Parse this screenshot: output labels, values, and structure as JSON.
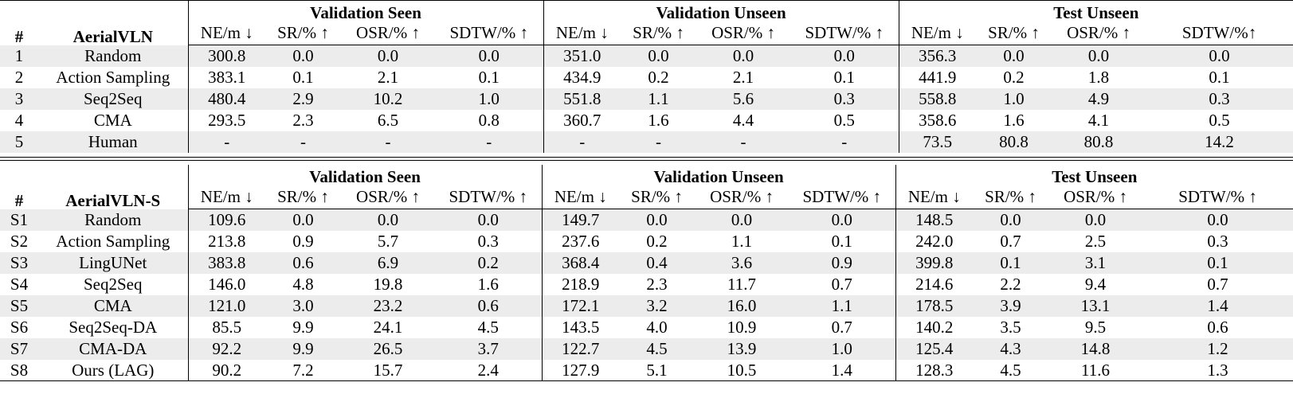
{
  "metric_headers": [
    "NE/m ↓",
    "SR/% ↑",
    "OSR/% ↑",
    "SDTW/% ↑"
  ],
  "test_unseen_sdtw_header_a": "SDTW/%↑",
  "table_a": {
    "hash": "#",
    "name": "AerialVLN",
    "groups": [
      "Validation Seen",
      "Validation Unseen",
      "Test Unseen"
    ],
    "rows": [
      {
        "idx": "1",
        "method": "Random",
        "cells": [
          "300.8",
          "0.0",
          "0.0",
          "0.0",
          "351.0",
          "0.0",
          "0.0",
          "0.0",
          "356.3",
          "0.0",
          "0.0",
          "0.0"
        ]
      },
      {
        "idx": "2",
        "method": "Action Sampling",
        "cells": [
          "383.1",
          "0.1",
          "2.1",
          "0.1",
          "434.9",
          "0.2",
          "2.1",
          "0.1",
          "441.9",
          "0.2",
          "1.8",
          "0.1"
        ]
      },
      {
        "idx": "3",
        "method": "Seq2Seq",
        "cells": [
          "480.4",
          "2.9",
          "10.2",
          "1.0",
          "551.8",
          "1.1",
          "5.6",
          "0.3",
          "558.8",
          "1.0",
          "4.9",
          "0.3"
        ]
      },
      {
        "idx": "4",
        "method": "CMA",
        "cells": [
          "293.5",
          "2.3",
          "6.5",
          "0.8",
          "360.7",
          "1.6",
          "4.4",
          "0.5",
          "358.6",
          "1.6",
          "4.1",
          "0.5"
        ]
      },
      {
        "idx": "5",
        "method": "Human",
        "cells": [
          "-",
          "-",
          "-",
          "-",
          "-",
          "-",
          "-",
          "-",
          "73.5",
          "80.8",
          "80.8",
          "14.2"
        ]
      }
    ]
  },
  "table_b": {
    "hash": "#",
    "name": "AerialVLN-S",
    "groups": [
      "Validation Seen",
      "Validation Unseen",
      "Test Unseen"
    ],
    "rows": [
      {
        "idx": "S1",
        "method": "Random",
        "cells": [
          "109.6",
          "0.0",
          "0.0",
          "0.0",
          "149.7",
          "0.0",
          "0.0",
          "0.0",
          "148.5",
          "0.0",
          "0.0",
          "0.0"
        ]
      },
      {
        "idx": "S2",
        "method": "Action Sampling",
        "cells": [
          "213.8",
          "0.9",
          "5.7",
          "0.3",
          "237.6",
          "0.2",
          "1.1",
          "0.1",
          "242.0",
          "0.7",
          "2.5",
          "0.3"
        ]
      },
      {
        "idx": "S3",
        "method": "LingUNet",
        "cells": [
          "383.8",
          "0.6",
          "6.9",
          "0.2",
          "368.4",
          "0.4",
          "3.6",
          "0.9",
          "399.8",
          "0.1",
          "3.1",
          "0.1"
        ]
      },
      {
        "idx": "S4",
        "method": "Seq2Seq",
        "cells": [
          "146.0",
          "4.8",
          "19.8",
          "1.6",
          "218.9",
          "2.3",
          "11.7",
          "0.7",
          "214.6",
          "2.2",
          "9.4",
          "0.7"
        ]
      },
      {
        "idx": "S5",
        "method": "CMA",
        "cells": [
          "121.0",
          "3.0",
          "23.2",
          "0.6",
          "172.1",
          "3.2",
          "16.0",
          "1.1",
          "178.5",
          "3.9",
          "13.1",
          "1.4"
        ]
      },
      {
        "idx": "S6",
        "method": "Seq2Seq-DA",
        "cells": [
          "85.5",
          "9.9",
          "24.1",
          "4.5",
          "143.5",
          "4.0",
          "10.9",
          "0.7",
          "140.2",
          "3.5",
          "9.5",
          "0.6"
        ]
      },
      {
        "idx": "S7",
        "method": "CMA-DA",
        "cells": [
          "92.2",
          "9.9",
          "26.5",
          "3.7",
          "122.7",
          "4.5",
          "13.9",
          "1.0",
          "125.4",
          "4.3",
          "14.8",
          "1.2"
        ]
      },
      {
        "idx": "S8",
        "method": "Ours (LAG)",
        "cells": [
          "90.2",
          "7.2",
          "15.7",
          "2.4",
          "127.9",
          "5.1",
          "10.5",
          "1.4",
          "128.3",
          "4.5",
          "11.6",
          "1.3"
        ]
      }
    ]
  }
}
